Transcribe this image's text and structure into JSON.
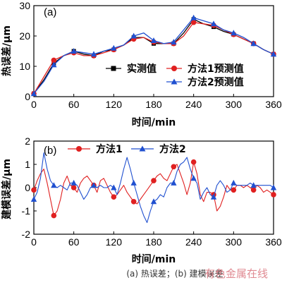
{
  "chart_data": [
    {
      "type": "line",
      "panel_label": "(a)",
      "xlabel": "时间/min",
      "ylabel": "热误差/μm",
      "xlim": [
        0,
        360
      ],
      "ylim": [
        0,
        30
      ],
      "xticks": [
        0,
        60,
        120,
        180,
        240,
        300,
        360
      ],
      "yticks": [
        0,
        10,
        20,
        30
      ],
      "legend_position": "center-right",
      "series": [
        {
          "name": "实测值",
          "color": "#000000",
          "marker": "square",
          "x": [
            0,
            15,
            30,
            45,
            60,
            75,
            90,
            105,
            120,
            135,
            150,
            165,
            180,
            195,
            210,
            225,
            240,
            255,
            270,
            285,
            300,
            315,
            330,
            345,
            360
          ],
          "y": [
            1,
            5.5,
            11,
            13.5,
            15,
            14,
            13.5,
            15,
            15.5,
            17,
            19.5,
            19.5,
            17.5,
            17.5,
            17.5,
            21,
            25.5,
            24,
            23,
            21.5,
            20.5,
            19,
            17.5,
            15.5,
            14
          ]
        },
        {
          "name": "方法1预测值",
          "color": "#e02020",
          "marker": "circle",
          "x": [
            0,
            15,
            30,
            45,
            60,
            75,
            90,
            105,
            120,
            135,
            150,
            165,
            180,
            195,
            210,
            225,
            240,
            255,
            270,
            285,
            300,
            315,
            330,
            345,
            360
          ],
          "y": [
            1,
            6.5,
            12,
            13.5,
            14.5,
            13.5,
            13.5,
            14.5,
            15.5,
            17,
            19,
            19.5,
            18,
            17.5,
            17.5,
            20,
            24.5,
            24,
            23.5,
            22,
            20.5,
            19,
            17.5,
            15.5,
            14
          ]
        },
        {
          "name": "方法2预测值",
          "color": "#2050d0",
          "marker": "triangle",
          "x": [
            0,
            15,
            30,
            45,
            60,
            75,
            90,
            105,
            120,
            135,
            150,
            165,
            180,
            195,
            210,
            225,
            240,
            255,
            270,
            285,
            300,
            315,
            330,
            345,
            360
          ],
          "y": [
            1,
            5,
            10.5,
            13.5,
            15,
            14.5,
            14,
            15,
            16,
            17,
            20,
            21,
            18.5,
            17.5,
            18,
            22,
            26,
            25,
            24,
            22,
            21,
            19.5,
            17.5,
            15.5,
            14
          ]
        }
      ]
    },
    {
      "type": "line",
      "panel_label": "(b)",
      "xlabel": "时间/min",
      "ylabel": "建模误差/μm",
      "xlim": [
        0,
        360
      ],
      "ylim": [
        -2,
        2
      ],
      "xticks": [
        0,
        60,
        120,
        180,
        240,
        300,
        360
      ],
      "yticks": [
        -2,
        -1,
        0,
        1,
        2
      ],
      "legend_position": "top",
      "series": [
        {
          "name": "方法1",
          "color": "#e02020",
          "marker": "circle",
          "x": [
            0,
            5,
            10,
            15,
            20,
            25,
            30,
            35,
            40,
            45,
            50,
            55,
            60,
            65,
            70,
            75,
            80,
            85,
            90,
            95,
            100,
            105,
            110,
            115,
            120,
            125,
            130,
            135,
            140,
            145,
            150,
            155,
            160,
            165,
            170,
            175,
            180,
            185,
            190,
            195,
            200,
            205,
            210,
            215,
            220,
            225,
            230,
            235,
            240,
            245,
            250,
            255,
            260,
            265,
            270,
            275,
            280,
            285,
            290,
            295,
            300,
            305,
            310,
            315,
            320,
            325,
            330,
            335,
            340,
            345,
            350,
            355,
            360
          ],
          "y": [
            -0.1,
            0.3,
            0.6,
            0.8,
            0.2,
            -0.5,
            -1.2,
            -1.0,
            -0.5,
            0.2,
            0.5,
            0.1,
            0.0,
            -0.2,
            0.2,
            0.4,
            0.5,
            0.3,
            0.1,
            -0.2,
            0.3,
            0.4,
            0.1,
            -0.2,
            -0.4,
            -0.3,
            -0.1,
            0.1,
            -0.2,
            -0.4,
            -0.6,
            -0.7,
            -0.5,
            -0.3,
            -0.1,
            0.1,
            0.3,
            0.5,
            0.6,
            0.4,
            0.3,
            0.6,
            0.9,
            1.0,
            0.6,
            0.2,
            -0.3,
            0.2,
            1.1,
            0.6,
            -0.3,
            -0.6,
            -0.2,
            -0.2,
            -0.3,
            -1.0,
            -0.8,
            -0.4,
            0.1,
            -0.1,
            -0.1,
            0.1,
            0.1,
            0.0,
            0.1,
            0.0,
            -0.1,
            0.1,
            0.0,
            -0.2,
            -0.1,
            -0.2,
            -0.3
          ]
        },
        {
          "name": "方法2",
          "color": "#2050d0",
          "marker": "triangle",
          "x": [
            0,
            5,
            10,
            15,
            20,
            25,
            30,
            35,
            40,
            45,
            50,
            55,
            60,
            65,
            70,
            75,
            80,
            85,
            90,
            95,
            100,
            105,
            110,
            115,
            120,
            125,
            130,
            135,
            140,
            145,
            150,
            155,
            160,
            165,
            170,
            175,
            180,
            185,
            190,
            195,
            200,
            205,
            210,
            215,
            220,
            225,
            230,
            235,
            240,
            245,
            250,
            255,
            260,
            265,
            270,
            275,
            280,
            285,
            290,
            295,
            300,
            305,
            310,
            315,
            320,
            325,
            330,
            335,
            340,
            345,
            350,
            355,
            360
          ],
          "y": [
            -0.5,
            -0.2,
            0.4,
            1.5,
            0.8,
            0.3,
            0.1,
            0.0,
            0.1,
            0.0,
            -0.1,
            0.2,
            0.2,
            0.1,
            -0.2,
            -0.5,
            -0.3,
            0.0,
            0.1,
            0.0,
            0.1,
            0.0,
            0.0,
            0.1,
            0.0,
            -0.3,
            0.2,
            0.8,
            1.3,
            0.8,
            0.2,
            -0.3,
            -0.8,
            -1.2,
            -1.5,
            -1.0,
            -0.6,
            -0.5,
            -0.3,
            -0.4,
            0.0,
            0.2,
            0.2,
            0.7,
            1.0,
            1.1,
            1.3,
            0.8,
            0.4,
            0.2,
            -0.5,
            -0.2,
            0.0,
            -0.3,
            -0.4,
            0.1,
            0.3,
            0.1,
            -0.2,
            -0.1,
            0.2,
            0.1,
            0.1,
            0.1,
            0.1,
            0.2,
            0.1,
            0.1,
            0.1,
            0.1,
            0.1,
            0.1,
            0.0
          ]
        }
      ]
    }
  ],
  "caption": "(a) 热误差；(b) 建模误差",
  "watermark": "有色金属在线"
}
